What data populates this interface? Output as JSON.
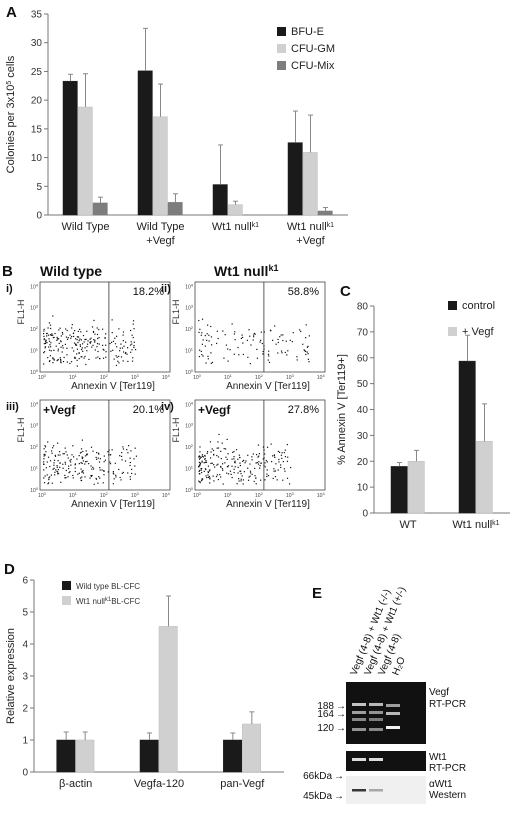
{
  "panels": [
    "A",
    "B",
    "C",
    "D",
    "E"
  ],
  "colors": {
    "black": "#1a1a1a",
    "lightgray": "#d0d0d0",
    "midgray": "#7d7d7d"
  },
  "chart_data": [
    {
      "id": "A",
      "type": "bar",
      "ylabel": "Colonies per 3x10",
      "ylabel_sup": "5",
      "ylabel_end": " cells",
      "ylim": [
        0,
        35
      ],
      "yticks": [
        0,
        5,
        10,
        15,
        20,
        25,
        30,
        35
      ],
      "categories": [
        {
          "line1": "Wild Type",
          "sup1": "",
          "line2": ""
        },
        {
          "line1": "Wild Type",
          "sup1": "",
          "line2": "+Vegf"
        },
        {
          "line1": "Wt1 null",
          "sup1": "k1",
          "line2": ""
        },
        {
          "line1": "Wt1 null",
          "sup1": "k1",
          "line2": "+Vegf"
        }
      ],
      "series": [
        {
          "name": "BFU-E",
          "color": "#1a1a1a",
          "values": [
            23.3,
            25.1,
            5.3,
            12.6
          ],
          "errors": [
            1.2,
            7.4,
            6.9,
            5.5
          ]
        },
        {
          "name": "CFU-GM",
          "color": "#d0d0d0",
          "values": [
            18.8,
            17.1,
            1.8,
            10.9
          ],
          "errors": [
            5.8,
            5.7,
            0.6,
            6.5
          ]
        },
        {
          "name": "CFU-Mix",
          "color": "#7d7d7d",
          "values": [
            2.1,
            2.2,
            0.0,
            0.7
          ],
          "errors": [
            1.0,
            1.5,
            0.0,
            0.6
          ]
        }
      ],
      "legend_position": "top-right",
      "grid": false
    },
    {
      "id": "C",
      "type": "bar",
      "ylabel": "% Annexin V [Ter119+]",
      "ylim": [
        0,
        80
      ],
      "yticks": [
        0,
        10,
        20,
        30,
        40,
        50,
        60,
        70,
        80
      ],
      "categories": [
        {
          "line1": "WT",
          "sup1": ""
        },
        {
          "line1": "Wt1 null",
          "sup1": "k1"
        }
      ],
      "series": [
        {
          "name": "control",
          "color": "#1a1a1a",
          "values": [
            18.0,
            58.7
          ],
          "errors": [
            1.5,
            10.0
          ]
        },
        {
          "name": "+ Vegf",
          "color": "#d0d0d0",
          "values": [
            20.0,
            27.7
          ],
          "errors": [
            4.2,
            14.5
          ]
        }
      ],
      "legend_position": "top-right",
      "grid": false
    },
    {
      "id": "D",
      "type": "bar",
      "ylabel": "Relative expression",
      "ylim": [
        0,
        6
      ],
      "yticks": [
        0,
        1,
        2,
        3,
        4,
        5,
        6
      ],
      "categories": [
        {
          "line1": "β-actin",
          "sup1": ""
        },
        {
          "line1": "Vegfa-120",
          "sup1": ""
        },
        {
          "line1": "pan-Vegf",
          "sup1": ""
        }
      ],
      "series": [
        {
          "name": "Wild type BL-CFC",
          "name_pre": "Wild type BL-CFC",
          "name_sup": "",
          "name_post": "",
          "color": "#1a1a1a",
          "values": [
            1.0,
            1.0,
            1.0
          ],
          "errors": [
            0.25,
            0.22,
            0.22
          ]
        },
        {
          "name": "Wt1 nullk1BL-CFC",
          "name_pre": "Wt1 null",
          "name_sup": "k1",
          "name_post": "BL-CFC",
          "color": "#d0d0d0",
          "values": [
            1.0,
            4.55,
            1.5
          ],
          "errors": [
            0.25,
            0.95,
            0.38
          ]
        }
      ],
      "legend_position": "top-left",
      "grid": false
    }
  ],
  "flow": {
    "y_axis_label": "FL1-H",
    "x_axis_label": "Annexin V [Ter119]",
    "decade_labels": [
      "10",
      "10",
      "10",
      "10",
      "10"
    ],
    "decade_exps": [
      "0",
      "1",
      "2",
      "3",
      "4"
    ],
    "columns": [
      {
        "title": "Wild type",
        "title_sup": ""
      },
      {
        "title": "Wt1 null",
        "title_sup": "k1"
      }
    ],
    "plots": [
      {
        "roman": "i)",
        "condition": "",
        "percent": "18.2%",
        "density": 0.95
      },
      {
        "roman": "ii)",
        "condition": "",
        "percent": "58.8%",
        "density": 0.45
      },
      {
        "roman": "iii)",
        "condition": "+Vegf",
        "percent": "20.1%",
        "density": 0.8
      },
      {
        "roman": "iv)",
        "condition": "+Vegf",
        "percent": "27.8%",
        "density": 0.9
      }
    ]
  },
  "gel": {
    "lane_labels": [
      "Vegf (4-8) + Wt1 (-/-)",
      "Vegf (4-8) + Wt1 (+/-)",
      "Vegf (4-8)",
      "H₂O"
    ],
    "vegf_markers": [
      "188",
      "164",
      "120"
    ],
    "vegf_label": [
      "Vegf",
      "RT-PCR"
    ],
    "wt1_label": [
      "Wt1",
      "RT-PCR"
    ],
    "western_markers": [
      "66kDa",
      "45kDa"
    ],
    "western_label": [
      "αWt1",
      "Western"
    ]
  }
}
